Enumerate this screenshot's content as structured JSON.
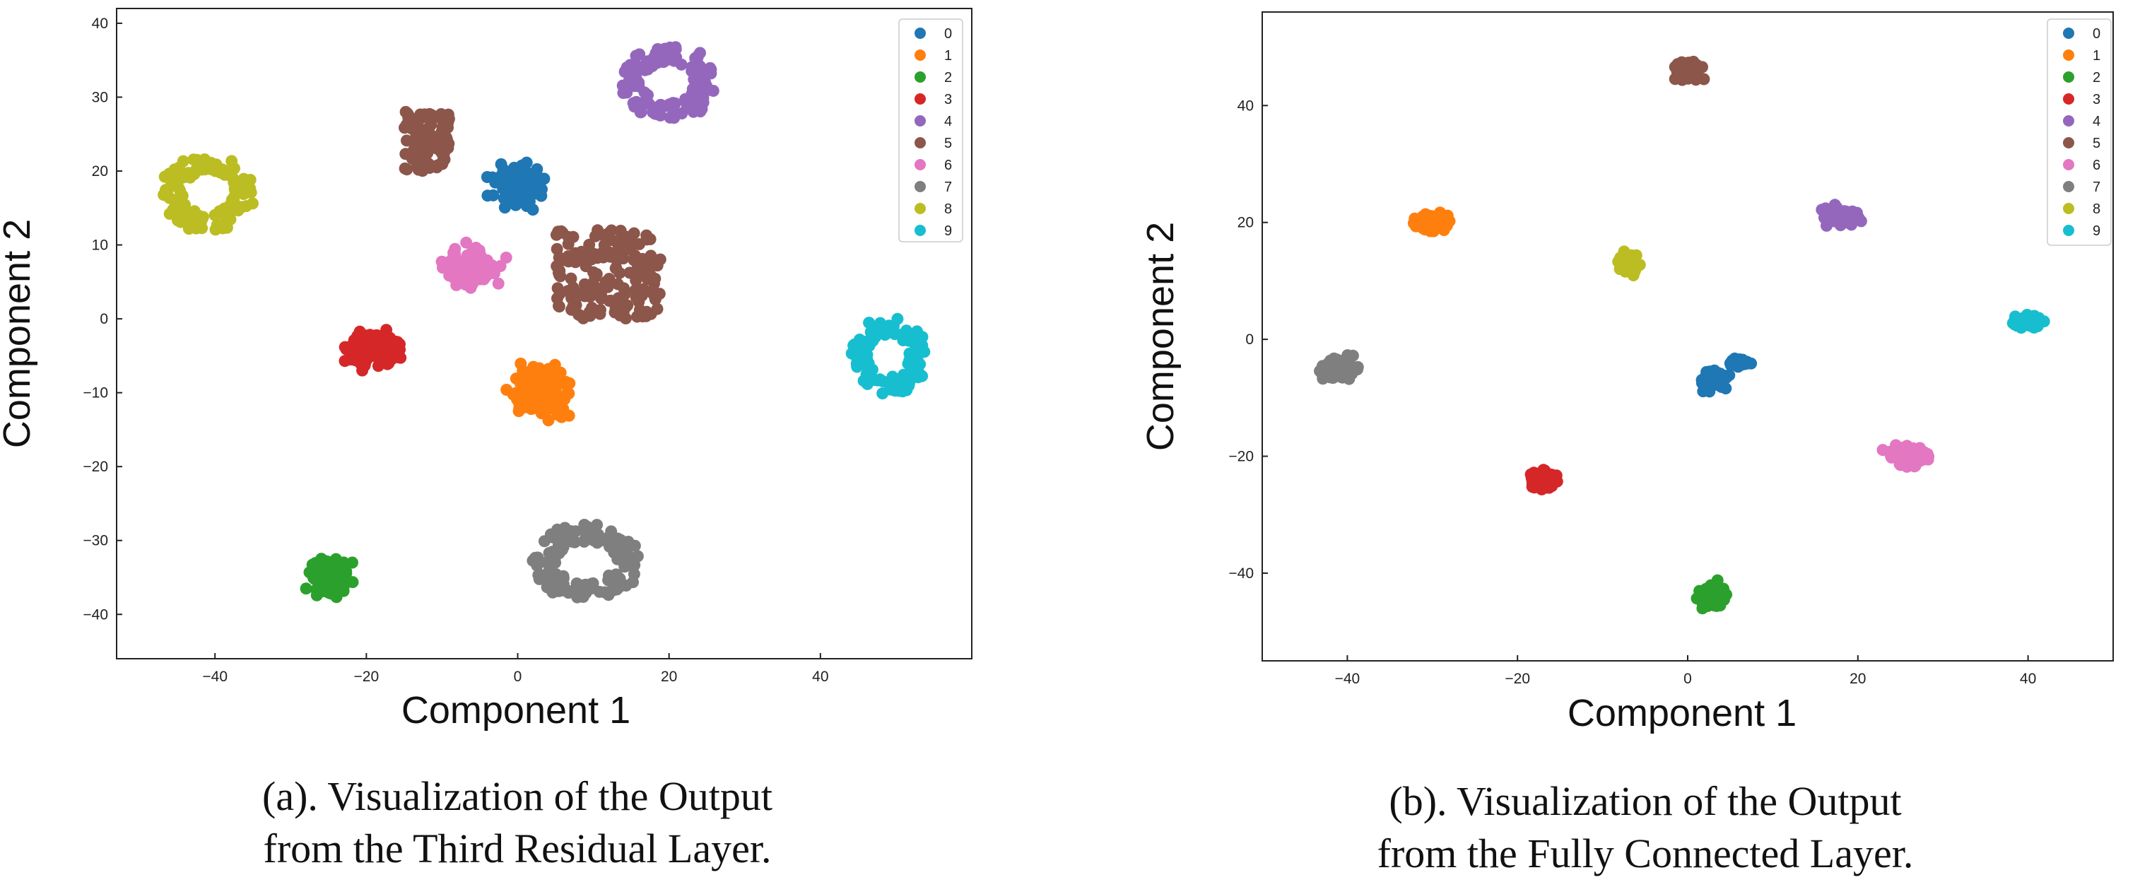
{
  "colors": [
    "#1f77b4",
    "#ff7f0e",
    "#2ca02c",
    "#d62728",
    "#9467bd",
    "#8c564b",
    "#e377c2",
    "#7f7f7f",
    "#bcbd22",
    "#17becf"
  ],
  "chart_data": [
    {
      "type": "scatter",
      "title": "",
      "caption_line1": "(a). Visualization of the Output",
      "caption_line2": "from the Third Residual Layer.",
      "xlabel": "Component 1",
      "ylabel": "Component 2",
      "xlim": [
        -53,
        60
      ],
      "ylim": [
        -46,
        42
      ],
      "xticks": [
        -40,
        -20,
        0,
        20,
        40
      ],
      "yticks": [
        -40,
        -30,
        -20,
        -10,
        0,
        10,
        20,
        30,
        40
      ],
      "grid": false,
      "legend_position": "top-right",
      "legend": [
        "0",
        "1",
        "2",
        "3",
        "4",
        "5",
        "6",
        "7",
        "8",
        "9"
      ],
      "series": [
        {
          "name": "0",
          "shape": "blob",
          "clusters": [
            {
              "cx": 0,
              "cy": 18,
              "rx": 6,
              "ry": 5
            }
          ]
        },
        {
          "name": "1",
          "shape": "blob",
          "clusters": [
            {
              "cx": 3,
              "cy": -10,
              "rx": 7,
              "ry": 6
            }
          ]
        },
        {
          "name": "2",
          "shape": "blob",
          "clusters": [
            {
              "cx": -25,
              "cy": -35,
              "rx": 5,
              "ry": 5
            }
          ]
        },
        {
          "name": "3",
          "shape": "blob",
          "clusters": [
            {
              "cx": -19,
              "cy": -4,
              "rx": 6,
              "ry": 5
            }
          ]
        },
        {
          "name": "4",
          "shape": "ring",
          "clusters": [
            {
              "cx": 20,
              "cy": 32,
              "rx": 6,
              "ry": 5
            }
          ]
        },
        {
          "name": "5",
          "shape": "arc",
          "clusters": [
            {
              "cx": -12,
              "cy": 24,
              "rx": 3,
              "ry": 4
            },
            {
              "cx": 12,
              "cy": 6,
              "rx": 7,
              "ry": 6
            }
          ]
        },
        {
          "name": "6",
          "shape": "blob",
          "clusters": [
            {
              "cx": -6,
              "cy": 7,
              "rx": 6,
              "ry": 5
            }
          ]
        },
        {
          "name": "7",
          "shape": "ring",
          "clusters": [
            {
              "cx": 9,
              "cy": -33,
              "rx": 7,
              "ry": 5
            }
          ]
        },
        {
          "name": "8",
          "shape": "ring",
          "clusters": [
            {
              "cx": -41,
              "cy": 17,
              "rx": 6,
              "ry": 5
            }
          ]
        },
        {
          "name": "9",
          "shape": "ring",
          "clusters": [
            {
              "cx": 49,
              "cy": -5,
              "rx": 5,
              "ry": 5
            }
          ]
        }
      ]
    },
    {
      "type": "scatter",
      "title": "",
      "caption_line1": "(b). Visualization of the Output",
      "caption_line2": "from the Fully Connected Layer.",
      "xlabel": "Component 1",
      "ylabel": "Component 2",
      "xlim": [
        -50,
        50
      ],
      "ylim": [
        -55,
        56
      ],
      "xticks": [
        -40,
        -20,
        0,
        20,
        40
      ],
      "yticks": [
        -40,
        -20,
        0,
        20,
        40
      ],
      "grid": false,
      "legend_position": "top-right",
      "legend": [
        "0",
        "1",
        "2",
        "3",
        "4",
        "5",
        "6",
        "7",
        "8",
        "9"
      ],
      "series": [
        {
          "name": "0",
          "shape": "blob",
          "clusters": [
            {
              "cx": 3,
              "cy": -7,
              "rx": 3,
              "ry": 3
            },
            {
              "cx": 6,
              "cy": -4,
              "rx": 2,
              "ry": 1
            }
          ]
        },
        {
          "name": "1",
          "shape": "blob",
          "clusters": [
            {
              "cx": -30,
              "cy": 20,
              "rx": 4,
              "ry": 3
            }
          ]
        },
        {
          "name": "2",
          "shape": "blob",
          "clusters": [
            {
              "cx": 3,
              "cy": -44,
              "rx": 3,
              "ry": 4
            }
          ]
        },
        {
          "name": "3",
          "shape": "blob",
          "clusters": [
            {
              "cx": -17,
              "cy": -24,
              "rx": 3,
              "ry": 3
            }
          ]
        },
        {
          "name": "4",
          "shape": "blob",
          "clusters": [
            {
              "cx": 18,
              "cy": 21,
              "rx": 4,
              "ry": 3
            }
          ]
        },
        {
          "name": "5",
          "shape": "blob",
          "clusters": [
            {
              "cx": 0,
              "cy": 46,
              "rx": 3,
              "ry": 3
            }
          ]
        },
        {
          "name": "6",
          "shape": "blob",
          "clusters": [
            {
              "cx": 26,
              "cy": -20,
              "rx": 4,
              "ry": 3
            }
          ]
        },
        {
          "name": "7",
          "shape": "blob",
          "clusters": [
            {
              "cx": -41,
              "cy": -5,
              "rx": 4,
              "ry": 3
            }
          ]
        },
        {
          "name": "8",
          "shape": "blob",
          "clusters": [
            {
              "cx": -7,
              "cy": 13,
              "rx": 2,
              "ry": 3
            }
          ]
        },
        {
          "name": "9",
          "shape": "blob",
          "clusters": [
            {
              "cx": 40,
              "cy": 3,
              "rx": 4,
              "ry": 2
            }
          ]
        }
      ]
    }
  ]
}
